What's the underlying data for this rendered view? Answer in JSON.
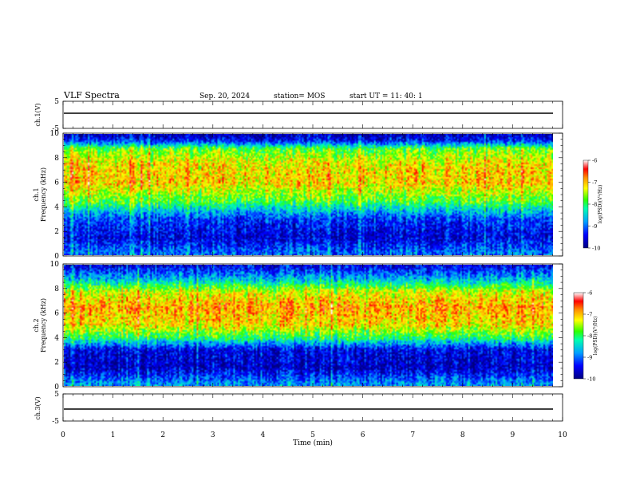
{
  "header": {
    "title": "VLF Spectra",
    "date": "Sep. 20, 2024",
    "station": "station= MOS",
    "start": "start  UT =   11: 40: 1"
  },
  "chart_data": [
    {
      "type": "line",
      "name": "ch1-voltage",
      "ylabel": "ch.1(V)",
      "ylim": [
        -5,
        5
      ],
      "ytick_labels": [
        "5",
        "-5"
      ],
      "series": [
        {
          "x": [
            0,
            9.8
          ],
          "y": [
            0,
            0
          ]
        }
      ]
    },
    {
      "type": "heatmap",
      "name": "ch1-spectrogram",
      "ylabel": "ch.1\nFrequency (kHz)",
      "ylim": [
        0,
        10
      ],
      "ytick_labels": [
        "0",
        "2",
        "4",
        "6",
        "8",
        "10"
      ],
      "xlim": [
        0,
        9.8
      ],
      "band_profile": [
        {
          "freq_khz": 0.2,
          "log_psd": -9.0
        },
        {
          "freq_khz": 1.5,
          "log_psd": -9.6
        },
        {
          "freq_khz": 3.0,
          "log_psd": -9.2
        },
        {
          "freq_khz": 4.5,
          "log_psd": -7.8
        },
        {
          "freq_khz": 6.0,
          "log_psd": -7.1
        },
        {
          "freq_khz": 7.5,
          "log_psd": -7.2
        },
        {
          "freq_khz": 8.8,
          "log_psd": -7.8
        },
        {
          "freq_khz": 9.4,
          "log_psd": -9.3
        },
        {
          "freq_khz": 10.0,
          "log_psd": -9.8
        }
      ],
      "colorbar": {
        "label": "log(PSD)(V²/Hz)",
        "range": [
          -10,
          -6
        ],
        "tick_labels": [
          "-6",
          "-7",
          "-8",
          "-9",
          "-10"
        ]
      }
    },
    {
      "type": "heatmap",
      "name": "ch2-spectrogram",
      "ylabel": "ch.2\nFrequency (kHz)",
      "ylim": [
        0,
        10
      ],
      "ytick_labels": [
        "0",
        "2",
        "4",
        "6",
        "8",
        "10"
      ],
      "xlim": [
        0,
        9.8
      ],
      "band_profile": [
        {
          "freq_khz": 0.2,
          "log_psd": -8.8
        },
        {
          "freq_khz": 1.5,
          "log_psd": -9.7
        },
        {
          "freq_khz": 3.0,
          "log_psd": -9.5
        },
        {
          "freq_khz": 4.0,
          "log_psd": -8.0
        },
        {
          "freq_khz": 5.0,
          "log_psd": -7.2
        },
        {
          "freq_khz": 6.5,
          "log_psd": -6.9
        },
        {
          "freq_khz": 7.8,
          "log_psd": -7.4
        },
        {
          "freq_khz": 8.8,
          "log_psd": -8.6
        },
        {
          "freq_khz": 10.0,
          "log_psd": -9.6
        }
      ],
      "colorbar": {
        "label": "log(PSD)(V²/Hz)",
        "range": [
          -10,
          -6
        ],
        "tick_labels": [
          "-6",
          "-7",
          "-8",
          "-9",
          "-10"
        ]
      }
    },
    {
      "type": "line",
      "name": "ch3-voltage",
      "ylabel": "ch.3(V)",
      "ylim": [
        -5,
        5
      ],
      "ytick_labels": [
        "5",
        "-5"
      ],
      "series": [
        {
          "x": [
            0,
            9.8
          ],
          "y": [
            0,
            0
          ]
        }
      ]
    }
  ],
  "xaxis": {
    "label": "Time (min)",
    "range": [
      0,
      10
    ],
    "tick_labels": [
      "0",
      "1",
      "2",
      "3",
      "4",
      "5",
      "6",
      "7",
      "8",
      "9",
      "10"
    ]
  }
}
